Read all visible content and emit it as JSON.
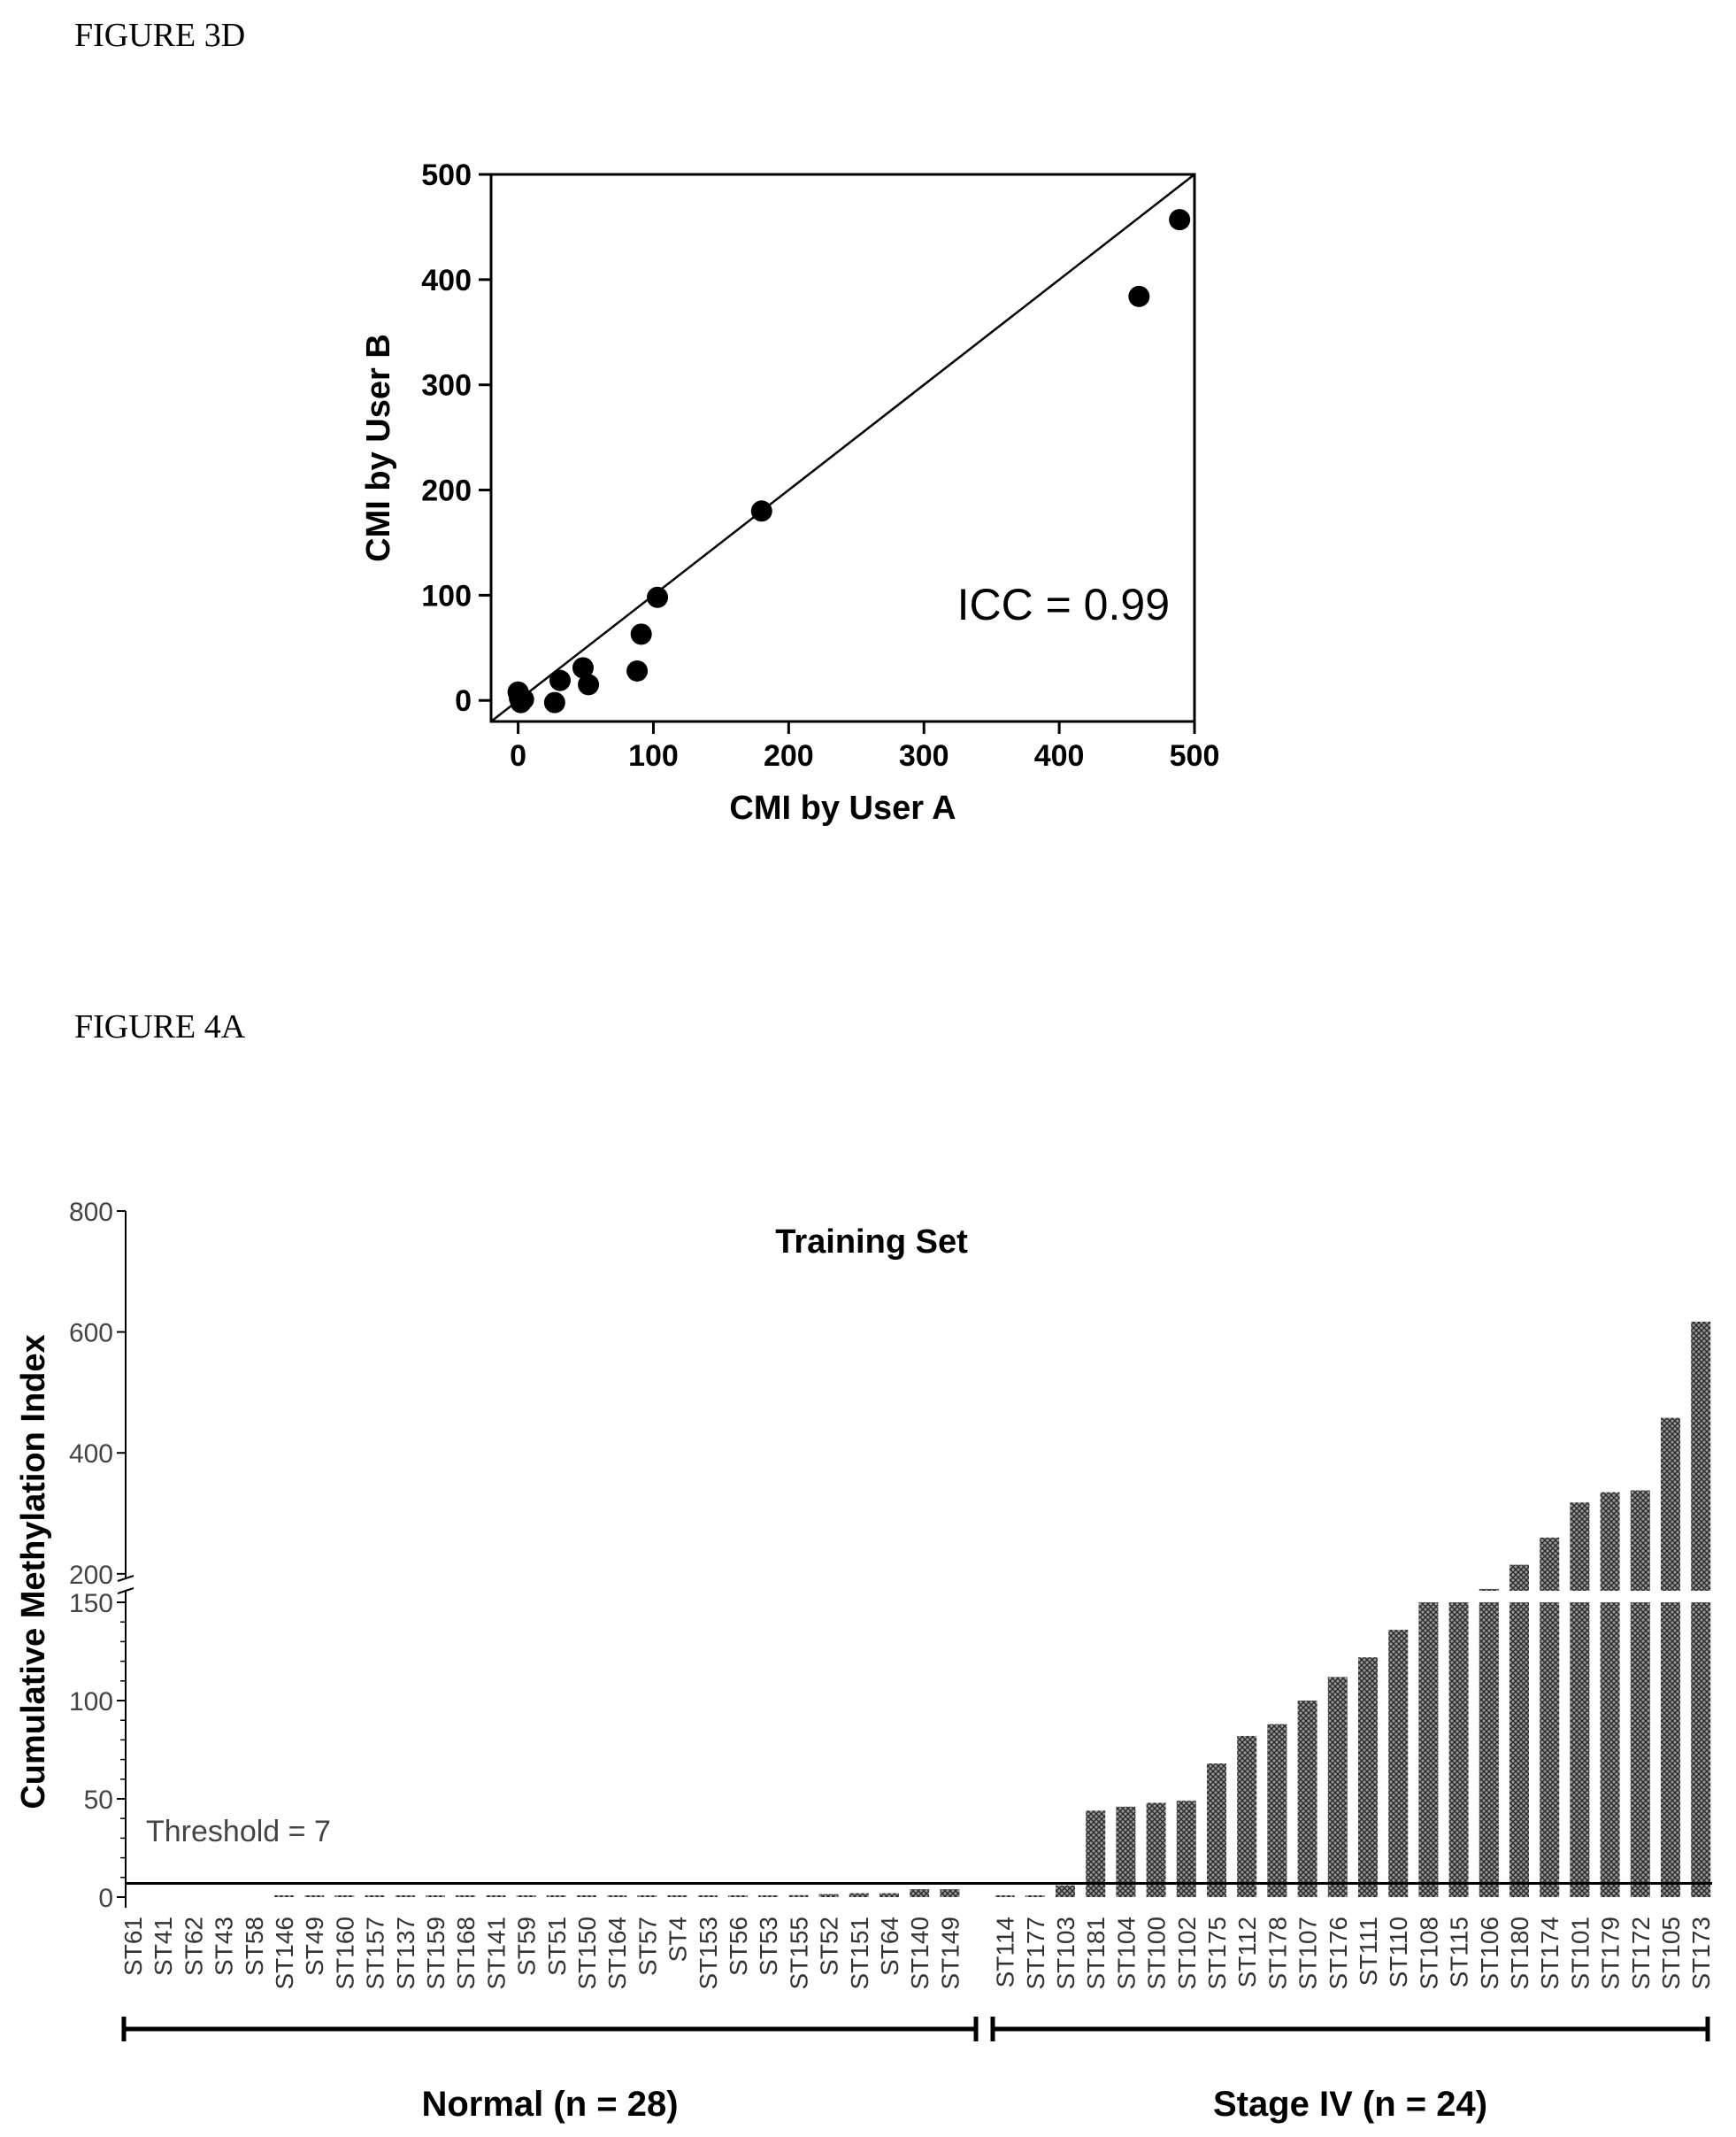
{
  "figures": {
    "fig3d_label": "FIGURE 3D",
    "fig4a_label": "FIGURE 4A"
  },
  "chart_data": [
    {
      "type": "scatter",
      "xlabel": "CMI by User A",
      "ylabel": "CMI by User B",
      "xlim": [
        -20,
        500
      ],
      "ylim": [
        -20,
        500
      ],
      "xticks": [
        0,
        100,
        200,
        300,
        400,
        500
      ],
      "yticks": [
        0,
        100,
        200,
        300,
        400,
        500
      ],
      "annotation": "ICC = 0.99",
      "identity_line": true,
      "grid": false,
      "points": [
        {
          "x": 0,
          "y": 8
        },
        {
          "x": 1,
          "y": 2
        },
        {
          "x": 2,
          "y": -2
        },
        {
          "x": 4,
          "y": 1
        },
        {
          "x": 27,
          "y": -2
        },
        {
          "x": 31,
          "y": 19
        },
        {
          "x": 48,
          "y": 31
        },
        {
          "x": 52,
          "y": 15
        },
        {
          "x": 88,
          "y": 28
        },
        {
          "x": 91,
          "y": 63
        },
        {
          "x": 103,
          "y": 98
        },
        {
          "x": 180,
          "y": 180
        },
        {
          "x": 459,
          "y": 384
        },
        {
          "x": 489,
          "y": 457
        }
      ]
    },
    {
      "type": "bar",
      "title": "Training Set",
      "ylabel": "Cumulative Methylation Index",
      "threshold": 7,
      "threshold_label": "Threshold = 7",
      "y_axis_break": true,
      "ylim_lower": [
        0,
        150
      ],
      "ylim_upper": [
        150,
        800
      ],
      "yticks_lower": [
        0,
        50,
        100,
        150
      ],
      "yticks_upper": [
        200,
        400,
        600,
        800
      ],
      "categories": [
        "ST61",
        "ST41",
        "ST62",
        "ST43",
        "ST58",
        "ST146",
        "ST49",
        "ST160",
        "ST157",
        "ST137",
        "ST159",
        "ST168",
        "ST141",
        "ST59",
        "ST51",
        "ST150",
        "ST164",
        "ST57",
        "ST4",
        "ST153",
        "ST56",
        "ST53",
        "ST155",
        "ST52",
        "ST151",
        "ST64",
        "ST140",
        "ST149",
        "ST114",
        "ST177",
        "ST103",
        "ST181",
        "ST104",
        "ST100",
        "ST102",
        "ST175",
        "ST112",
        "ST178",
        "ST107",
        "ST176",
        "ST111",
        "ST110",
        "ST108",
        "ST115",
        "ST106",
        "ST180",
        "ST174",
        "ST101",
        "ST179",
        "ST172",
        "ST105",
        "ST173"
      ],
      "values": [
        0,
        0,
        0,
        0,
        0,
        0.3,
        0.3,
        0.3,
        0.3,
        0.3,
        0.3,
        0.3,
        0.3,
        0.3,
        0.3,
        0.3,
        0.3,
        0.3,
        0.3,
        0.3,
        0.3,
        0.5,
        1,
        1.5,
        2,
        2,
        4,
        4,
        0.3,
        0.3,
        6,
        44,
        46,
        48,
        49,
        68,
        82,
        88,
        100,
        112,
        122,
        136,
        165,
        168,
        175,
        215,
        260,
        318,
        335,
        338,
        458,
        617
      ],
      "groups": [
        {
          "label": "Normal (n = 28)",
          "count": 28
        },
        {
          "label": "Stage IV (n = 24)",
          "count": 24
        }
      ]
    }
  ]
}
